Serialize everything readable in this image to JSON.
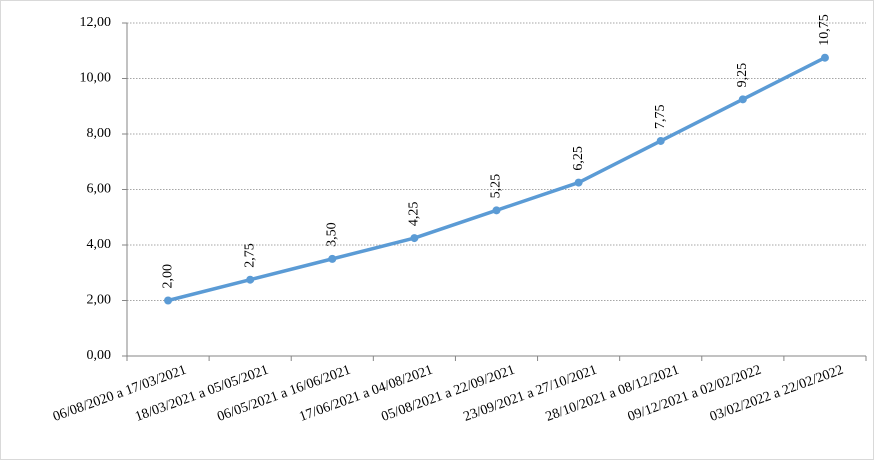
{
  "chart_data": {
    "type": "line",
    "categories": [
      "06/08/2020 a 17/03/2021",
      "18/03/2021 a 05/05/2021",
      "06/05/2021 a 16/06/2021",
      "17/06/2021 a 04/08/2021",
      "05/08/2021 a 22/09/2021",
      "23/09/2021 a 27/10/2021",
      "28/10/2021 a 08/12/2021",
      "09/12/2021 a 02/02/2022",
      "03/02/2022 a 22/02/2022"
    ],
    "values": [
      2,
      2.75,
      3.5,
      4.25,
      5.25,
      6.25,
      7.75,
      9.25,
      10.75
    ],
    "value_labels": [
      "2,00",
      "2,75",
      "3,50",
      "4,25",
      "5,25",
      "6,25",
      "7,75",
      "9,25",
      "10,75"
    ],
    "color": "#5b9bd5",
    "ylim": [
      0,
      12
    ],
    "yticks": [
      {
        "value": 0,
        "label": "0,00"
      },
      {
        "value": 2,
        "label": "2,00"
      },
      {
        "value": 4,
        "label": "4,00"
      },
      {
        "value": 6,
        "label": "6,00"
      },
      {
        "value": 8,
        "label": "8,00"
      },
      {
        "value": 10,
        "label": "10,00"
      },
      {
        "value": 12,
        "label": "12,00"
      }
    ],
    "grid": true
  }
}
